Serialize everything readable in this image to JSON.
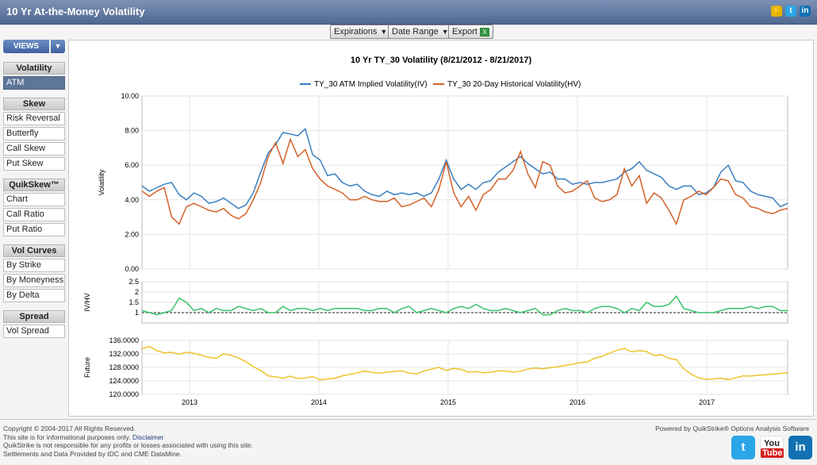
{
  "window": {
    "title": "10 Yr At-the-Money Volatility"
  },
  "title_icons": [
    "lightning-icon",
    "twitter-icon",
    "linkedin-icon"
  ],
  "toolbar": {
    "expirations": "Expirations",
    "date_range": "Date Range",
    "export": "Export"
  },
  "sidebar": {
    "views_label": "VIEWS",
    "sections": [
      {
        "heading": "Volatility",
        "items": [
          "ATM"
        ]
      },
      {
        "heading": "Skew",
        "items": [
          "Risk Reversal",
          "Butterfly",
          "Call Skew",
          "Put Skew"
        ]
      },
      {
        "heading": "QuikSkew™",
        "items": [
          "Chart",
          "Call Ratio",
          "Put Ratio"
        ]
      },
      {
        "heading": "Vol Curves",
        "items": [
          "By Strike",
          "By Moneyness",
          "By Delta"
        ]
      },
      {
        "heading": "Spread",
        "items": [
          "Vol Spread"
        ]
      }
    ],
    "active": "ATM"
  },
  "chart_data": {
    "type": "line",
    "title": "10 Yr TY_30 Volatility (8/21/2012 - 8/21/2017)",
    "legend_position": "top-center",
    "x_labels": [
      "2013",
      "2014",
      "2015",
      "2016",
      "2017"
    ],
    "x_range": [
      "2012-08-21",
      "2017-08-21"
    ],
    "colors": {
      "iv": "#3a7fc1",
      "hv": "#d4622a",
      "ratio": "#38c26a",
      "future": "#f0c22a"
    },
    "panels": [
      {
        "ylabel": "Volatility",
        "ylim": [
          0,
          10
        ],
        "yticks": [
          "10.00",
          "8.00",
          "6.00",
          "4.00",
          "2.00",
          "0.00"
        ],
        "series": [
          {
            "name": "TY_30 ATM Implied Volatility(IV)",
            "key": "iv",
            "values": [
              4.8,
              4.5,
              4.7,
              4.9,
              5.0,
              4.3,
              4.0,
              4.4,
              4.2,
              3.8,
              3.9,
              4.1,
              3.8,
              3.5,
              3.7,
              4.4,
              5.6,
              6.7,
              7.2,
              7.9,
              7.8,
              7.7,
              8.1,
              6.6,
              6.3,
              5.4,
              5.5,
              5.0,
              4.8,
              4.9,
              4.5,
              4.3,
              4.2,
              4.5,
              4.3,
              4.4,
              4.3,
              4.4,
              4.2,
              4.4,
              5.2,
              6.3,
              5.2,
              4.6,
              4.9,
              4.6,
              5.0,
              5.1,
              5.6,
              5.9,
              6.2,
              6.5,
              6.1,
              5.8,
              5.5,
              5.6,
              5.2,
              5.2,
              4.9,
              5.0,
              4.9,
              5.0,
              5.0,
              5.1,
              5.2,
              5.6,
              5.8,
              6.2,
              5.7,
              5.5,
              5.3,
              4.8,
              4.6,
              4.8,
              4.8,
              4.3,
              4.4,
              4.7,
              5.6,
              6.0,
              5.1,
              5.0,
              4.5,
              4.3,
              4.2,
              4.1,
              3.6,
              3.8
            ]
          },
          {
            "name": "TY_30 20-Day Historical Volatility(HV)",
            "key": "hv",
            "values": [
              4.5,
              4.2,
              4.5,
              4.7,
              3.0,
              2.6,
              3.6,
              3.8,
              3.6,
              3.4,
              3.3,
              3.5,
              3.1,
              2.9,
              3.2,
              4.0,
              5.0,
              6.5,
              7.3,
              6.1,
              7.5,
              6.5,
              6.9,
              5.8,
              5.2,
              4.8,
              4.6,
              4.4,
              4.0,
              4.0,
              4.2,
              4.0,
              3.9,
              3.9,
              4.1,
              3.6,
              3.7,
              3.9,
              4.1,
              3.6,
              4.6,
              6.2,
              4.4,
              3.6,
              4.2,
              3.4,
              4.3,
              4.6,
              5.2,
              5.2,
              5.7,
              6.8,
              5.5,
              4.7,
              6.2,
              6.0,
              4.8,
              4.4,
              4.5,
              4.8,
              5.1,
              4.1,
              3.9,
              4.0,
              4.3,
              5.8,
              4.8,
              5.4,
              3.8,
              4.4,
              4.1,
              3.4,
              2.6,
              4.0,
              4.2,
              4.5,
              4.3,
              4.7,
              5.2,
              5.1,
              4.3,
              4.1,
              3.6,
              3.5,
              3.3,
              3.2,
              3.4,
              3.5
            ]
          }
        ]
      },
      {
        "ylabel": "IV/HV",
        "ylim": [
          0.5,
          2.5
        ],
        "yticks": [
          "2.5",
          "2",
          "1.5",
          "1"
        ],
        "reference_line": 1,
        "series": [
          {
            "name": "IV/HV",
            "key": "ratio",
            "values": [
              1.1,
              1.0,
              0.9,
              1.0,
              1.1,
              1.7,
              1.5,
              1.1,
              1.2,
              1.0,
              1.2,
              1.1,
              1.1,
              1.3,
              1.2,
              1.1,
              1.2,
              1.0,
              1.0,
              1.3,
              1.1,
              1.2,
              1.2,
              1.1,
              1.2,
              1.1,
              1.2,
              1.2,
              1.2,
              1.2,
              1.1,
              1.1,
              1.2,
              1.2,
              1.0,
              1.2,
              1.3,
              1.0,
              1.1,
              1.2,
              1.1,
              1.0,
              1.2,
              1.3,
              1.2,
              1.4,
              1.2,
              1.1,
              1.1,
              1.2,
              1.1,
              1.0,
              1.1,
              1.2,
              0.9,
              0.9,
              1.1,
              1.2,
              1.1,
              1.1,
              1.0,
              1.2,
              1.3,
              1.3,
              1.2,
              1.0,
              1.2,
              1.1,
              1.5,
              1.3,
              1.3,
              1.4,
              1.8,
              1.2,
              1.1,
              1.0,
              1.0,
              1.0,
              1.1,
              1.2,
              1.2,
              1.2,
              1.3,
              1.2,
              1.3,
              1.3,
              1.1,
              1.1
            ]
          }
        ]
      },
      {
        "ylabel": "Future",
        "ylim": [
          120,
          136
        ],
        "yticks": [
          "136.0000",
          "132.0000",
          "128.0000",
          "124.0000",
          "120.0000"
        ],
        "series": [
          {
            "name": "Future",
            "key": "future",
            "values": [
              133.5,
              134.2,
              133.0,
              132.3,
              132.5,
              131.9,
              132.5,
              132.2,
              131.6,
              131.0,
              130.7,
              132.0,
              131.6,
              130.8,
              129.7,
              128.2,
              127.1,
              125.5,
              125.2,
              124.8,
              125.4,
              124.7,
              124.9,
              125.3,
              124.3,
              124.6,
              124.8,
              125.5,
              125.9,
              126.4,
              126.9,
              126.5,
              126.3,
              126.6,
              126.8,
              127.0,
              126.3,
              126.1,
              126.9,
              127.5,
              128.0,
              127.1,
              127.7,
              127.4,
              126.6,
              126.8,
              126.4,
              126.6,
              127.0,
              126.9,
              126.6,
              126.9,
              127.5,
              127.8,
              127.6,
              127.9,
              128.2,
              128.6,
              128.9,
              129.4,
              129.6,
              130.7,
              131.3,
              132.2,
              133.1,
              133.6,
              132.6,
              133.0,
              132.7,
              131.5,
              131.7,
              130.7,
              130.3,
              127.6,
              126.0,
              124.9,
              124.5,
              124.6,
              124.8,
              124.4,
              124.9,
              125.5,
              125.4,
              125.7,
              125.8,
              126.0,
              126.2,
              126.4
            ]
          }
        ]
      }
    ]
  },
  "footer": {
    "copyright": "Copyright © 2004-2017 All Rights Reserved.",
    "info_prefix": "This site is for informational purposes only.",
    "disclaimer": "Disclaimer",
    "responsibility": "QuikStrike is not responsible for any profits or losses associated with using this site.",
    "settlements": "Settlements and Data Provided by IDC and CME DataMine.",
    "powered": "Powered by QuikStrike® Options Analysis Software"
  },
  "social": [
    "Twitter",
    "YouTube",
    "LinkedIn"
  ]
}
